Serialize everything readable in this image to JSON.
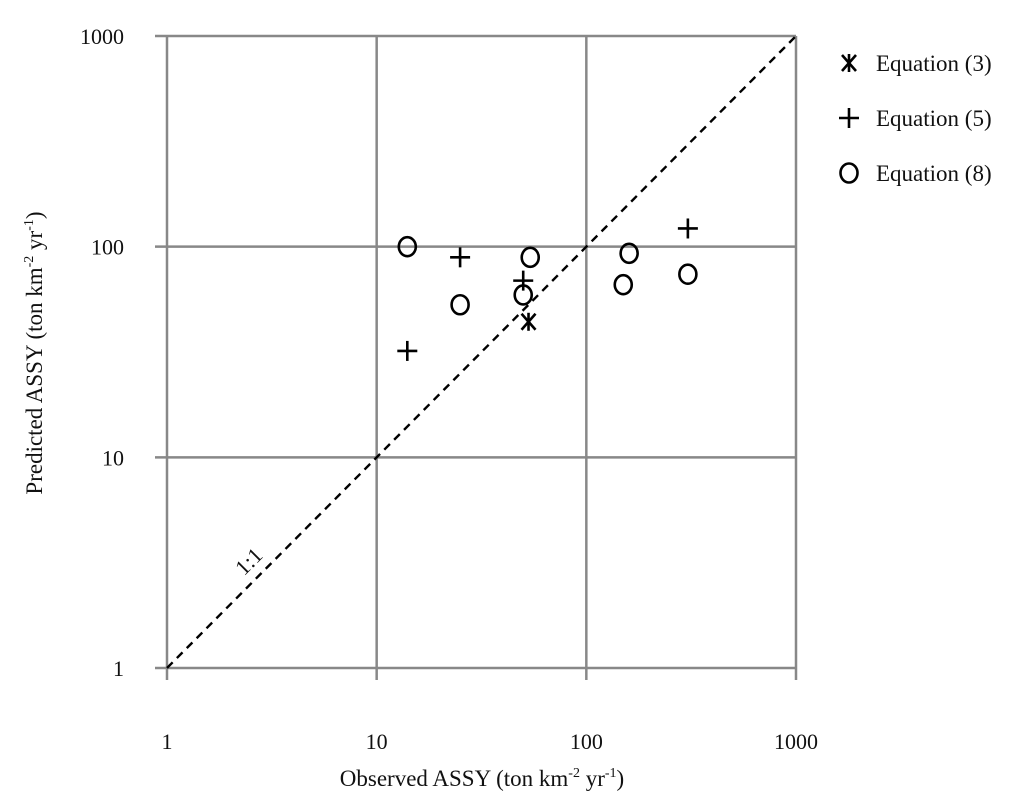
{
  "chart_data": {
    "type": "scatter",
    "xscale": "log",
    "yscale": "log",
    "xlim": [
      1,
      1000
    ],
    "ylim": [
      1,
      1000
    ],
    "grid": true,
    "legend_position": "top-right",
    "xlabel": {
      "main": "Observed ASSY (ton km",
      "sup1": "-2",
      "mid": " yr",
      "sup2": "-1",
      "end": ")"
    },
    "ylabel": {
      "main": "Predicted ASSY (ton km",
      "sup1": "-2",
      "mid": " yr",
      "sup2": "-1",
      "end": ")"
    },
    "x_ticks": [
      1,
      10,
      100,
      1000
    ],
    "y_ticks": [
      1,
      10,
      100,
      1000
    ],
    "x_tick_labels": [
      "1",
      "10",
      "100",
      "1000"
    ],
    "y_tick_labels": [
      "1",
      "10",
      "100",
      "1000"
    ],
    "reference_line": {
      "label": "1:1",
      "from": [
        1,
        1
      ],
      "to": [
        1000,
        1000
      ],
      "style": "dashed"
    },
    "series": [
      {
        "name": "Equation (3)",
        "marker": "asterisk",
        "points": [
          {
            "x": 53,
            "y": 44
          }
        ]
      },
      {
        "name": "Equation (5)",
        "marker": "plus",
        "points": [
          {
            "x": 14,
            "y": 32
          },
          {
            "x": 25,
            "y": 89
          },
          {
            "x": 50,
            "y": 69
          },
          {
            "x": 305,
            "y": 122
          }
        ]
      },
      {
        "name": "Equation (8)",
        "marker": "circle",
        "points": [
          {
            "x": 14,
            "y": 100
          },
          {
            "x": 25,
            "y": 53
          },
          {
            "x": 50,
            "y": 59
          },
          {
            "x": 54,
            "y": 89
          },
          {
            "x": 150,
            "y": 66
          },
          {
            "x": 160,
            "y": 93
          },
          {
            "x": 305,
            "y": 74
          }
        ]
      }
    ]
  }
}
